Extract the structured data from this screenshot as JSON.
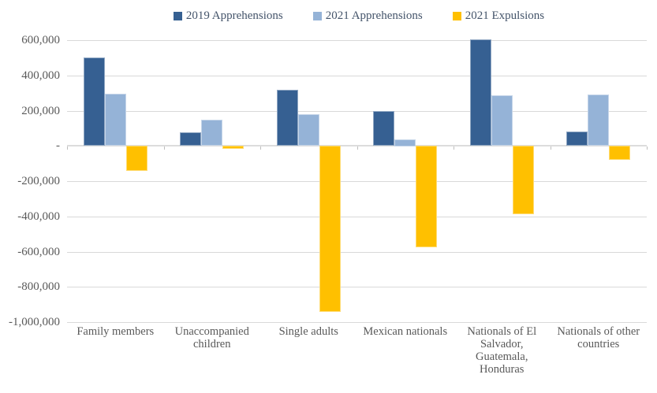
{
  "chart_data": {
    "type": "bar",
    "legend_position": "top",
    "grid": true,
    "categories": [
      "Family members",
      "Unaccompanied children",
      "Single adults",
      "Mexican nationals",
      "Nationals of El Salvador, Guatemala, Honduras",
      "Nationals of other countries"
    ],
    "series": [
      {
        "name": "2019 Apprehensions",
        "color": "#366092",
        "values": [
          500000,
          77000,
          317000,
          197000,
          605000,
          81000
        ]
      },
      {
        "name": "2021 Apprehensions",
        "color": "#95B3D7",
        "values": [
          295000,
          147000,
          180000,
          38000,
          285000,
          290000
        ]
      },
      {
        "name": "2021 Expulsions",
        "color": "#FFC000",
        "values": [
          -145000,
          -20000,
          -945000,
          -578000,
          -390000,
          -82000
        ]
      }
    ],
    "y_axis": {
      "min": -1000000,
      "max": 600000,
      "step": 200000,
      "tick_labels": [
        "600,000",
        "400,000",
        "200,000",
        "-",
        "-200,000",
        "-400,000",
        "-600,000",
        "-800,000",
        "-1,000,000"
      ]
    }
  },
  "colors": {
    "series_2019_apprehensions": "#366092",
    "series_2021_apprehensions": "#95B3D7",
    "series_2021_expulsions": "#FFC000",
    "gridline": "#D9D9D9",
    "axis_line": "#DCDCDC",
    "axis_tick": "#BFBFBF",
    "axis_text": "#595959",
    "legend_text": "#44546A",
    "background": "#FFFFFF"
  }
}
